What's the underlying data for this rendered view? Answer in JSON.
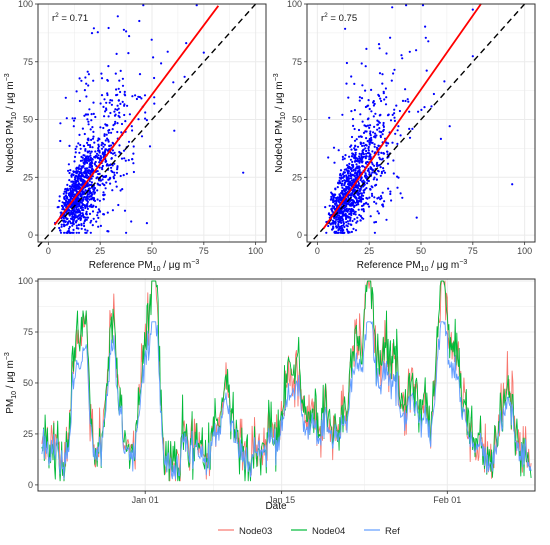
{
  "colors": {
    "scatter_points": "#0000ff",
    "fit_line": "#ff0000",
    "identity_line": "#000000",
    "node03": "#f8766d",
    "node04": "#00ba38",
    "ref": "#619cff",
    "grid": "#ebebeb",
    "panel_border": "#333333"
  },
  "chart_data": [
    {
      "type": "scatter",
      "xlabel": "Reference PM",
      "xlabel_sub": "10",
      "xlabel_unit": " / μg m",
      "xlabel_sup": "−3",
      "ylabel": "Node03 PM",
      "ylabel_sub": "10",
      "ylabel_unit": " / μg m",
      "ylabel_sup": "−3",
      "annotation": "r",
      "annotation_sup": "2",
      "annotation_value": " = 0.71",
      "xlim": [
        -5,
        105
      ],
      "ylim": [
        -3,
        100
      ],
      "xticks": [
        0,
        25,
        50,
        75,
        100
      ],
      "yticks": [
        0,
        25,
        50,
        75,
        100
      ],
      "xtick_labels": [
        "0",
        "25",
        "50",
        "75",
        "100"
      ],
      "ytick_labels": [
        "0",
        "25",
        "50",
        "75",
        "100"
      ],
      "fit": {
        "x0": 3,
        "x1": 82,
        "slope": 1.2,
        "intercept": 0.8
      },
      "identity": true,
      "grid": true,
      "series": [
        {
          "points": "approx. 1100 points, dense cloud 5–40, scattered up to 100; outlier near (94, 27)"
        }
      ]
    },
    {
      "type": "scatter",
      "xlabel": "Reference PM",
      "xlabel_sub": "10",
      "xlabel_unit": " / μg m",
      "xlabel_sup": "−3",
      "ylabel": "Node04 PM",
      "ylabel_sub": "10",
      "ylabel_unit": " / μg m",
      "ylabel_sup": "−3",
      "annotation": "r",
      "annotation_sup": "2",
      "annotation_value": " = 0.75",
      "xlim": [
        -5,
        105
      ],
      "ylim": [
        -3,
        100
      ],
      "xticks": [
        0,
        25,
        50,
        75,
        100
      ],
      "yticks": [
        0,
        25,
        50,
        75,
        100
      ],
      "xtick_labels": [
        "0",
        "25",
        "50",
        "75",
        "100"
      ],
      "ytick_labels": [
        "0",
        "25",
        "50",
        "75",
        "100"
      ],
      "fit": {
        "x0": 3,
        "x1": 79,
        "slope": 1.28,
        "intercept": -1.0
      },
      "identity": true,
      "grid": true,
      "series": [
        {
          "points": "approx. 1100 points, dense cloud 5–40, scattered up to 100; outlier near (94, 22)"
        }
      ]
    },
    {
      "type": "line",
      "xlabel": "Date",
      "ylabel": "PM",
      "ylabel_sub": "10",
      "ylabel_unit": " / μg m",
      "ylabel_sup": "−3",
      "x_start": "2018-12-21",
      "x_end": "2019-02-10",
      "xticks": [
        "2019-01-01",
        "2019-01-15",
        "2019-02-01"
      ],
      "xtick_labels": [
        "Jan 01",
        "Jan 15",
        "Feb 01"
      ],
      "ylim": [
        -3,
        101
      ],
      "yticks": [
        0,
        25,
        50,
        75,
        100
      ],
      "ytick_labels": [
        "0",
        "25",
        "50",
        "75",
        "100"
      ],
      "grid": true,
      "legend_position": "bottom",
      "series": [
        {
          "name": "Node03"
        },
        {
          "name": "Node04"
        },
        {
          "name": "Ref"
        }
      ]
    }
  ]
}
